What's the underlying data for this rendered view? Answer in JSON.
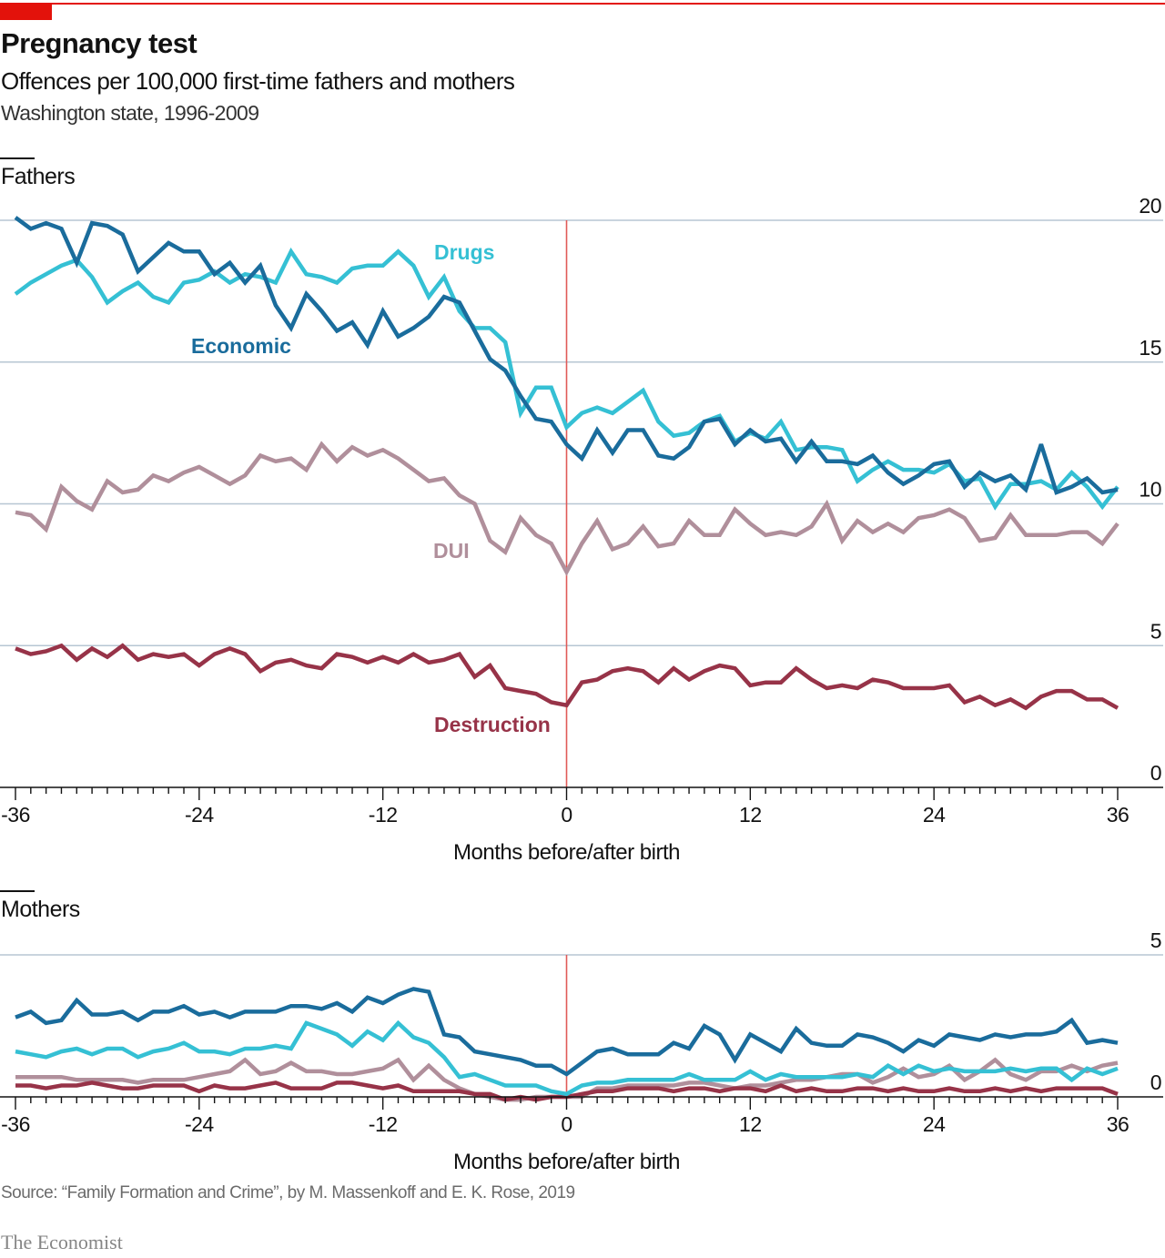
{
  "header": {
    "title": "Pregnancy test",
    "subtitle": "Offences per 100,000 first-time fathers and mothers",
    "subsubtitle": "Washington state, 1996-2009"
  },
  "footer": {
    "source": "Source: “Family Formation and Crime”, by M. Massenkoff and E. K. Rose, 2019",
    "brand": "The Economist"
  },
  "colors": {
    "brand_red": "#e3120b",
    "economic": "#1a6c9c",
    "drugs": "#35c0d4",
    "dui": "#b08f9b",
    "destruction": "#973348",
    "gridline": "#b7c6d3",
    "birth_line": "#e05a58"
  },
  "chart_data": [
    {
      "id": "fathers",
      "type": "line",
      "title": "Fathers",
      "xlabel": "Months before/after birth",
      "ylabel": "",
      "xlim": [
        -36,
        36
      ],
      "ylim": [
        0,
        20
      ],
      "x_ticks": [
        -36,
        -24,
        -12,
        0,
        12,
        24,
        36
      ],
      "y_ticks": [
        0,
        5,
        10,
        15,
        20
      ],
      "y_axis_side": "right",
      "grid": true,
      "reference_line_x": 0,
      "x": [
        -36,
        -35,
        -34,
        -33,
        -32,
        -31,
        -30,
        -29,
        -28,
        -27,
        -26,
        -25,
        -24,
        -23,
        -22,
        -21,
        -20,
        -19,
        -18,
        -17,
        -16,
        -15,
        -14,
        -13,
        -12,
        -11,
        -10,
        -9,
        -8,
        -7,
        -6,
        -5,
        -4,
        -3,
        -2,
        -1,
        0,
        1,
        2,
        3,
        4,
        5,
        6,
        7,
        8,
        9,
        10,
        11,
        12,
        13,
        14,
        15,
        16,
        17,
        18,
        19,
        20,
        21,
        22,
        23,
        24,
        25,
        26,
        27,
        28,
        29,
        30,
        31,
        32,
        33,
        34,
        35,
        36
      ],
      "series": [
        {
          "name": "Economic",
          "label": "Economic",
          "values": [
            20.1,
            19.7,
            19.9,
            19.7,
            18.5,
            19.9,
            19.8,
            19.5,
            18.2,
            18.7,
            19.2,
            18.9,
            18.9,
            18.1,
            18.5,
            17.8,
            18.4,
            17.0,
            16.2,
            17.4,
            16.8,
            16.1,
            16.4,
            15.6,
            16.8,
            15.9,
            16.2,
            16.6,
            17.3,
            17.1,
            16.1,
            15.1,
            14.7,
            13.8,
            13.0,
            12.9,
            12.1,
            11.6,
            12.6,
            11.8,
            12.6,
            12.6,
            11.7,
            11.6,
            12.0,
            12.9,
            13.0,
            12.1,
            12.6,
            12.2,
            12.3,
            11.5,
            12.2,
            11.5,
            11.5,
            11.4,
            11.7,
            11.1,
            10.7,
            11.0,
            11.4,
            11.5,
            10.6,
            11.1,
            10.8,
            11.0,
            10.5,
            12.1,
            10.4,
            10.6,
            10.9,
            10.4,
            10.5
          ]
        },
        {
          "name": "Drugs",
          "label": "Drugs",
          "values": [
            17.4,
            17.8,
            18.1,
            18.4,
            18.6,
            18.0,
            17.1,
            17.5,
            17.8,
            17.3,
            17.1,
            17.8,
            17.9,
            18.2,
            17.8,
            18.1,
            18.0,
            17.8,
            18.9,
            18.1,
            18.0,
            17.8,
            18.3,
            18.4,
            18.4,
            18.9,
            18.4,
            17.3,
            18.0,
            16.8,
            16.2,
            16.2,
            15.7,
            13.2,
            14.1,
            14.1,
            12.7,
            13.2,
            13.4,
            13.2,
            13.6,
            14.0,
            12.9,
            12.4,
            12.5,
            12.9,
            13.1,
            12.2,
            12.5,
            12.3,
            12.9,
            11.9,
            12.0,
            12.0,
            11.9,
            10.8,
            11.2,
            11.5,
            11.2,
            11.2,
            11.1,
            11.4,
            10.8,
            10.9,
            9.9,
            10.7,
            10.7,
            10.8,
            10.5,
            11.1,
            10.6,
            9.9,
            10.6
          ]
        },
        {
          "name": "DUI",
          "label": "DUI",
          "values": [
            9.7,
            9.6,
            9.1,
            10.6,
            10.1,
            9.8,
            10.8,
            10.4,
            10.5,
            11.0,
            10.8,
            11.1,
            11.3,
            11.0,
            10.7,
            11.0,
            11.7,
            11.5,
            11.6,
            11.2,
            12.1,
            11.5,
            12.0,
            11.7,
            11.9,
            11.6,
            11.2,
            10.8,
            10.9,
            10.3,
            10.0,
            8.7,
            8.3,
            9.5,
            8.9,
            8.6,
            7.6,
            8.6,
            9.4,
            8.4,
            8.6,
            9.2,
            8.5,
            8.6,
            9.4,
            8.9,
            8.9,
            9.8,
            9.3,
            8.9,
            9.0,
            8.9,
            9.2,
            10.0,
            8.7,
            9.4,
            9.0,
            9.3,
            9.0,
            9.5,
            9.6,
            9.8,
            9.5,
            8.7,
            8.8,
            9.6,
            8.9,
            8.9,
            8.9,
            9.0,
            9.0,
            8.6,
            9.3
          ]
        },
        {
          "name": "Destruction",
          "label": "Destruction",
          "values": [
            4.9,
            4.7,
            4.8,
            5.0,
            4.5,
            4.9,
            4.6,
            5.0,
            4.5,
            4.7,
            4.6,
            4.7,
            4.3,
            4.7,
            4.9,
            4.7,
            4.1,
            4.4,
            4.5,
            4.3,
            4.2,
            4.7,
            4.6,
            4.4,
            4.6,
            4.4,
            4.7,
            4.4,
            4.5,
            4.7,
            3.9,
            4.3,
            3.5,
            3.4,
            3.3,
            3.0,
            2.9,
            3.7,
            3.8,
            4.1,
            4.2,
            4.1,
            3.7,
            4.2,
            3.8,
            4.1,
            4.3,
            4.2,
            3.6,
            3.7,
            3.7,
            4.2,
            3.8,
            3.5,
            3.6,
            3.5,
            3.8,
            3.7,
            3.5,
            3.5,
            3.5,
            3.6,
            3.0,
            3.2,
            2.9,
            3.1,
            2.8,
            3.2,
            3.4,
            3.4,
            3.1,
            3.1,
            2.8
          ]
        }
      ],
      "annotations": [
        {
          "text": "Drugs",
          "series": "Drugs"
        },
        {
          "text": "Economic",
          "series": "Economic"
        },
        {
          "text": "DUI",
          "series": "DUI"
        },
        {
          "text": "Destruction",
          "series": "Destruction"
        }
      ]
    },
    {
      "id": "mothers",
      "type": "line",
      "title": "Mothers",
      "xlabel": "Months before/after birth",
      "ylabel": "",
      "xlim": [
        -36,
        36
      ],
      "ylim": [
        0,
        5
      ],
      "x_ticks": [
        -36,
        -24,
        -12,
        0,
        12,
        24,
        36
      ],
      "y_ticks": [
        0,
        5
      ],
      "y_axis_side": "right",
      "grid": true,
      "reference_line_x": 0,
      "x": [
        -36,
        -35,
        -34,
        -33,
        -32,
        -31,
        -30,
        -29,
        -28,
        -27,
        -26,
        -25,
        -24,
        -23,
        -22,
        -21,
        -20,
        -19,
        -18,
        -17,
        -16,
        -15,
        -14,
        -13,
        -12,
        -11,
        -10,
        -9,
        -8,
        -7,
        -6,
        -5,
        -4,
        -3,
        -2,
        -1,
        0,
        1,
        2,
        3,
        4,
        5,
        6,
        7,
        8,
        9,
        10,
        11,
        12,
        13,
        14,
        15,
        16,
        17,
        18,
        19,
        20,
        21,
        22,
        23,
        24,
        25,
        26,
        27,
        28,
        29,
        30,
        31,
        32,
        33,
        34,
        35,
        36
      ],
      "series": [
        {
          "name": "Economic",
          "values": [
            2.8,
            3.0,
            2.6,
            2.7,
            3.4,
            2.9,
            2.9,
            3.0,
            2.7,
            3.0,
            3.0,
            3.2,
            2.9,
            3.0,
            2.8,
            3.0,
            3.0,
            3.0,
            3.2,
            3.2,
            3.1,
            3.3,
            3.0,
            3.5,
            3.3,
            3.6,
            3.8,
            3.7,
            2.2,
            2.1,
            1.6,
            1.5,
            1.4,
            1.3,
            1.1,
            1.1,
            0.8,
            1.2,
            1.6,
            1.7,
            1.5,
            1.5,
            1.5,
            1.9,
            1.7,
            2.5,
            2.2,
            1.3,
            2.2,
            1.9,
            1.6,
            2.4,
            1.9,
            1.8,
            1.8,
            2.2,
            2.1,
            1.9,
            1.6,
            2.0,
            1.8,
            2.2,
            2.1,
            2.0,
            2.2,
            2.1,
            2.2,
            2.2,
            2.3,
            2.7,
            1.9,
            2.0,
            1.9
          ]
        },
        {
          "name": "Drugs",
          "values": [
            1.6,
            1.5,
            1.4,
            1.6,
            1.7,
            1.5,
            1.7,
            1.7,
            1.4,
            1.6,
            1.7,
            1.9,
            1.6,
            1.6,
            1.5,
            1.7,
            1.7,
            1.8,
            1.7,
            2.6,
            2.4,
            2.2,
            1.8,
            2.3,
            2.0,
            2.6,
            2.1,
            1.9,
            1.4,
            0.7,
            0.8,
            0.6,
            0.4,
            0.4,
            0.4,
            0.2,
            0.1,
            0.4,
            0.5,
            0.5,
            0.6,
            0.6,
            0.6,
            0.6,
            0.8,
            0.6,
            0.6,
            0.6,
            0.9,
            0.6,
            0.8,
            0.7,
            0.7,
            0.7,
            0.7,
            0.8,
            0.7,
            1.1,
            0.8,
            1.1,
            0.9,
            1.0,
            0.9,
            0.9,
            0.9,
            1.0,
            0.9,
            1.0,
            1.0,
            0.6,
            1.0,
            0.8,
            1.0
          ]
        },
        {
          "name": "DUI",
          "values": [
            0.7,
            0.7,
            0.7,
            0.7,
            0.6,
            0.6,
            0.6,
            0.6,
            0.5,
            0.6,
            0.6,
            0.6,
            0.7,
            0.8,
            0.9,
            1.3,
            0.8,
            0.9,
            1.2,
            0.9,
            0.9,
            0.8,
            0.8,
            0.9,
            1.0,
            1.3,
            0.6,
            1.1,
            0.6,
            0.3,
            0.1,
            0.0,
            -0.1,
            -0.1,
            0.0,
            0.0,
            0.0,
            0.0,
            0.3,
            0.3,
            0.4,
            0.4,
            0.4,
            0.4,
            0.5,
            0.5,
            0.4,
            0.3,
            0.4,
            0.4,
            0.5,
            0.6,
            0.6,
            0.7,
            0.8,
            0.8,
            0.5,
            0.7,
            1.0,
            0.7,
            0.8,
            1.1,
            0.6,
            0.9,
            1.3,
            0.8,
            0.6,
            0.9,
            0.9,
            1.1,
            0.9,
            1.1,
            1.2
          ]
        },
        {
          "name": "Destruction",
          "values": [
            0.4,
            0.4,
            0.3,
            0.4,
            0.4,
            0.5,
            0.4,
            0.3,
            0.3,
            0.4,
            0.4,
            0.4,
            0.2,
            0.4,
            0.3,
            0.3,
            0.4,
            0.5,
            0.3,
            0.3,
            0.3,
            0.5,
            0.5,
            0.4,
            0.3,
            0.4,
            0.2,
            0.2,
            0.2,
            0.2,
            0.1,
            0.1,
            -0.1,
            0.0,
            -0.1,
            0.0,
            0.0,
            0.1,
            0.2,
            0.2,
            0.3,
            0.3,
            0.3,
            0.2,
            0.3,
            0.3,
            0.2,
            0.3,
            0.3,
            0.2,
            0.4,
            0.2,
            0.3,
            0.2,
            0.2,
            0.3,
            0.3,
            0.2,
            0.3,
            0.2,
            0.2,
            0.3,
            0.2,
            0.2,
            0.3,
            0.2,
            0.3,
            0.2,
            0.3,
            0.3,
            0.3,
            0.3,
            0.1
          ]
        }
      ]
    }
  ]
}
